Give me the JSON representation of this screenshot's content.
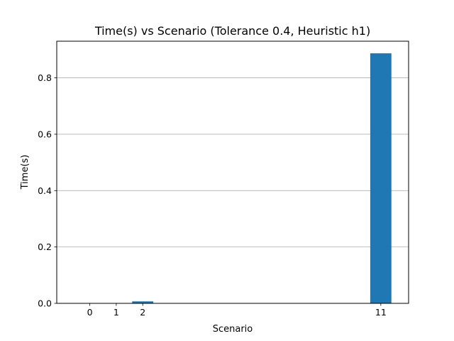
{
  "chart_data": {
    "type": "bar",
    "title": "Time(s) vs Scenario (Tolerance 0.4, Heuristic h1)",
    "xlabel": "Scenario",
    "ylabel": "Time(s)",
    "categories": [
      "0",
      "1",
      "2",
      "11"
    ],
    "x": [
      0,
      1,
      2,
      11
    ],
    "values": [
      0.0004,
      0.0004,
      0.007,
      0.887
    ],
    "xlim": [
      -1.25,
      12.05
    ],
    "ylim": [
      0,
      0.93
    ],
    "yticks": [
      0.0,
      0.2,
      0.4,
      0.6,
      0.8
    ],
    "ytick_labels": [
      "0.0",
      "0.2",
      "0.4",
      "0.6",
      "0.8"
    ],
    "bar_width": 0.8,
    "bar_color": "#1f77b4",
    "grid": "y"
  }
}
